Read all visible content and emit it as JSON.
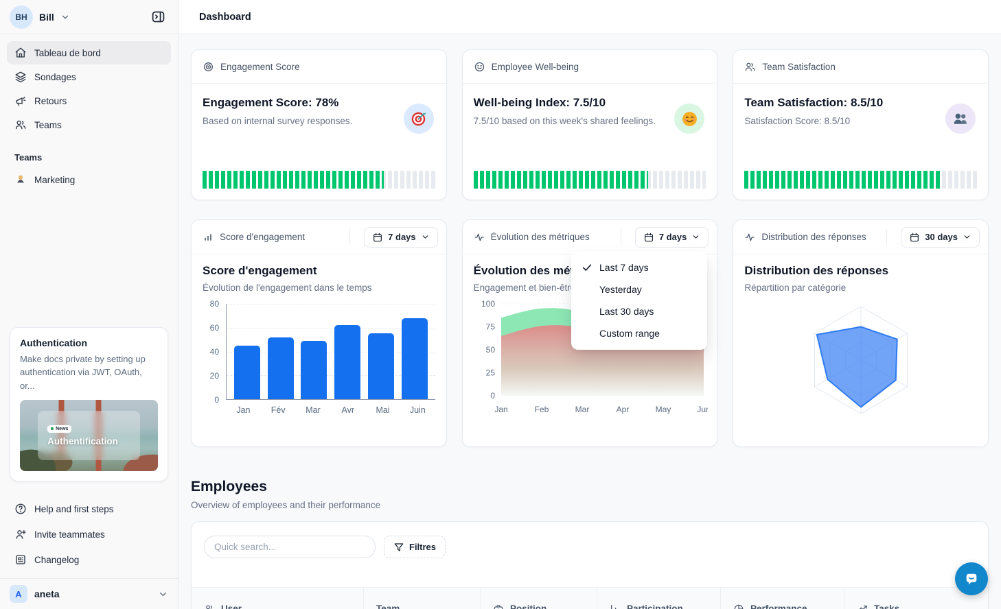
{
  "header": {
    "title": "Dashboard"
  },
  "sidebar": {
    "user": {
      "initials": "BH",
      "name": "Bill"
    },
    "nav": [
      {
        "label": "Tableau de bord",
        "icon": "home",
        "active": true
      },
      {
        "label": "Sondages",
        "icon": "layers",
        "active": false
      },
      {
        "label": "Retours",
        "icon": "megaphone",
        "active": false
      },
      {
        "label": "Teams",
        "icon": "users",
        "active": false
      }
    ],
    "teams_section_label": "Teams",
    "team_items": [
      {
        "label": "Marketing",
        "emoji": "person-at-laptop"
      }
    ],
    "promo": {
      "title": "Authentication",
      "body": "Make docs private by setting up authentication via JWT, OAuth, or...",
      "badge": "News",
      "image_title": "Authentification"
    },
    "footer_nav": [
      {
        "label": "Help and first steps",
        "icon": "help-circle"
      },
      {
        "label": "Invite teammates",
        "icon": "user-plus"
      },
      {
        "label": "Changelog",
        "icon": "newspaper"
      }
    ],
    "workspace": {
      "initial": "A",
      "name": "aneta"
    }
  },
  "stat_cards": [
    {
      "header": "Engagement Score",
      "head_icon": "target",
      "title": "Engagement Score: 78%",
      "subtitle": "Based on internal survey responses.",
      "emoji": "target-dart",
      "emoji_bg": "#dbeafe",
      "progress_pct": 78
    },
    {
      "header": "Employee Well-being",
      "head_icon": "smile",
      "title": "Well-being Index: 7.5/10",
      "subtitle": "7.5/10 based on this week's shared feelings.",
      "emoji": "smiling-face",
      "emoji_bg": "#d9f6e3",
      "progress_pct": 75
    },
    {
      "header": "Team Satisfaction",
      "head_icon": "users",
      "title": "Team Satisfaction: 8.5/10",
      "subtitle": "Satisfaction Score: 8.5/10",
      "emoji": "busts-in-silhouette",
      "emoji_bg": "#ede5f8",
      "progress_pct": 85
    }
  ],
  "chart_cards": [
    {
      "header": "Score d'engagement",
      "head_icon": "bar-chart",
      "range": "7 days",
      "title": "Score d'engagement",
      "subtitle": "Évolution de l'engagement dans le temps"
    },
    {
      "header": "Évolution des métriques",
      "head_icon": "activity",
      "range": "7 days",
      "title": "Évolution des métriques",
      "subtitle": "Engagement et bien-être"
    },
    {
      "header": "Distribution des réponses",
      "head_icon": "activity",
      "range": "30 days",
      "title": "Distribution des réponses",
      "subtitle": "Répartition par catégorie"
    }
  ],
  "range_menu": {
    "selected": "Last 7 days",
    "options": [
      {
        "label": "Last 7 days",
        "checked": true
      },
      {
        "label": "Yesterday",
        "checked": false
      },
      {
        "label": "Last 30 days",
        "checked": false
      },
      {
        "label": "Custom range",
        "checked": false
      }
    ]
  },
  "employees": {
    "title": "Employees",
    "subtitle": "Overview of employees and their performance",
    "search_placeholder": "Quick search...",
    "filters_label": "Filtres",
    "columns": [
      {
        "label": "User",
        "icon": "users"
      },
      {
        "label": "Team",
        "icon": ""
      },
      {
        "label": "Position",
        "icon": "briefcase"
      },
      {
        "label": "Participation",
        "icon": "bar-chart-axis"
      },
      {
        "label": "Performance",
        "icon": "pie-chart"
      },
      {
        "label": "Tasks",
        "icon": "trend-up"
      }
    ]
  },
  "colors": {
    "bar_blue": "#1570ef",
    "progress_green": "#00c76e",
    "radar_blue": "#4e8cf5",
    "area_green": "#8de7b4",
    "area_red": "#e08888",
    "chat_bubble": "#1287cb"
  },
  "chart_data": [
    {
      "type": "bar",
      "title": "Score d'engagement",
      "subtitle": "Évolution de l'engagement dans le temps",
      "categories": [
        "Jan",
        "Fév",
        "Mar",
        "Avr",
        "Mai",
        "Juin"
      ],
      "values": [
        45,
        52,
        49,
        62,
        55,
        68
      ],
      "xlabel": "",
      "ylabel": "",
      "ylim": [
        0,
        80
      ],
      "yticks": [
        0,
        20,
        40,
        60,
        80
      ],
      "grid": true,
      "color": "#1570ef"
    },
    {
      "type": "area",
      "title": "Évolution des métriques",
      "subtitle": "Engagement et bien-être",
      "x": [
        "Jan",
        "Feb",
        "Mar",
        "Apr",
        "May",
        "Jun"
      ],
      "series": [
        {
          "name": "engagement",
          "color": "#8de7b4",
          "values": [
            85,
            95,
            90,
            62,
            68,
            75
          ]
        },
        {
          "name": "bien-être",
          "color": "#e08888",
          "values": [
            65,
            76,
            74,
            60,
            66,
            63
          ]
        }
      ],
      "ylim": [
        0,
        100
      ],
      "yticks": [
        0,
        25,
        50,
        75,
        100
      ],
      "grid": true
    },
    {
      "type": "radar",
      "title": "Distribution des réponses",
      "subtitle": "Répartition par catégorie",
      "axes": 6,
      "levels": 3,
      "max": 100,
      "values": [
        62,
        78,
        75,
        88,
        72,
        95
      ],
      "color": "#4e8cf5"
    }
  ]
}
